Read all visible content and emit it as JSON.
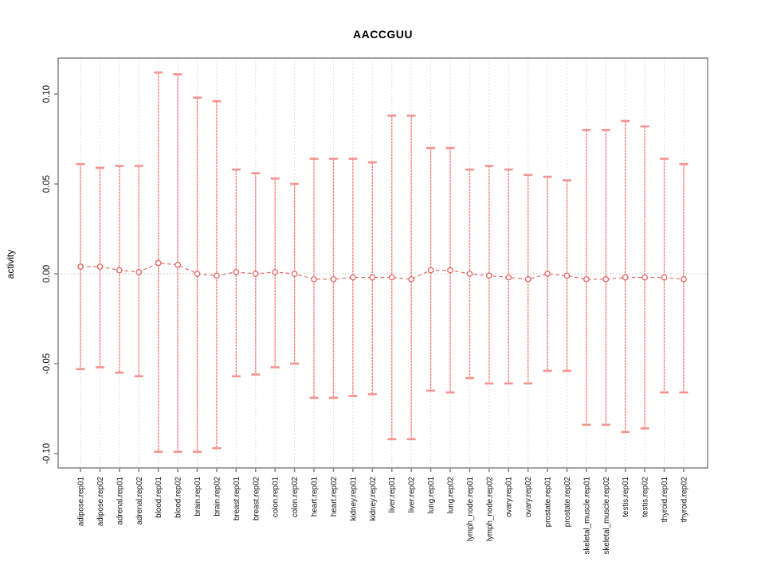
{
  "title": "AACCGUU",
  "colors": {
    "errorbar": "#f3827d",
    "cap": "#f59390",
    "point_stroke": "#e4605a",
    "connector": "#e4605a",
    "grid": "#d9d9d9",
    "zero_line": "#c4c4c4",
    "frame": "#8a8a8a",
    "tick": "#8a8a8a",
    "text": "#111111"
  },
  "chart_data": {
    "type": "scatter",
    "style": "errorbar",
    "title": "AACCGUU",
    "xlabel": "",
    "ylabel": "activity",
    "ylim": [
      -0.108,
      0.12
    ],
    "grid": "vertical-dotted-per-category-plus-zero-line",
    "legend": "none",
    "yticks": [
      0.1,
      0.05,
      0.0,
      -0.05,
      -0.1
    ],
    "ytick_labels": [
      "0.10",
      "0.05",
      "0.00",
      "-0.05",
      "-0.10"
    ],
    "categories": [
      "adipose.rep01",
      "adipose.rep02",
      "adrenal.rep01",
      "adrenal.rep02",
      "blood.rep01",
      "blood.rep02",
      "brain.rep01",
      "brain.rep02",
      "breast.rep01",
      "breast.rep02",
      "colon.rep01",
      "colon.rep02",
      "heart.rep01",
      "heart.rep02",
      "kidney.rep01",
      "kidney.rep02",
      "liver.rep01",
      "liver.rep02",
      "lung.rep01",
      "lung.rep02",
      "lymph_node.rep01",
      "lymph_node.rep02",
      "ovary.rep01",
      "ovary.rep02",
      "prostate.rep01",
      "prostate.rep02",
      "skeletal_muscle.rep01",
      "skeletal_muscle.rep02",
      "testis.rep01",
      "testis.rep02",
      "thyroid.rep01",
      "thyroid.rep02"
    ],
    "series": [
      {
        "name": "activity",
        "values": [
          0.004,
          0.004,
          0.002,
          0.001,
          0.006,
          0.005,
          0.0,
          -0.001,
          0.001,
          0.0,
          0.001,
          0.0,
          -0.003,
          -0.003,
          -0.002,
          -0.002,
          -0.002,
          -0.003,
          0.002,
          0.002,
          0.0,
          -0.001,
          -0.002,
          -0.003,
          0.0,
          -0.001,
          -0.003,
          -0.003,
          -0.002,
          -0.002,
          -0.002,
          -0.003
        ],
        "upper": [
          0.061,
          0.059,
          0.06,
          0.06,
          0.112,
          0.111,
          0.098,
          0.096,
          0.058,
          0.056,
          0.053,
          0.05,
          0.064,
          0.064,
          0.064,
          0.062,
          0.088,
          0.088,
          0.07,
          0.07,
          0.058,
          0.06,
          0.058,
          0.055,
          0.054,
          0.052,
          0.08,
          0.08,
          0.085,
          0.082,
          0.064,
          0.061
        ],
        "lower": [
          -0.053,
          -0.052,
          -0.055,
          -0.057,
          -0.099,
          -0.099,
          -0.099,
          -0.097,
          -0.057,
          -0.056,
          -0.052,
          -0.05,
          -0.069,
          -0.069,
          -0.068,
          -0.067,
          -0.092,
          -0.092,
          -0.065,
          -0.066,
          -0.058,
          -0.061,
          -0.061,
          -0.061,
          -0.054,
          -0.054,
          -0.084,
          -0.084,
          -0.088,
          -0.086,
          -0.066,
          -0.066
        ]
      }
    ]
  }
}
